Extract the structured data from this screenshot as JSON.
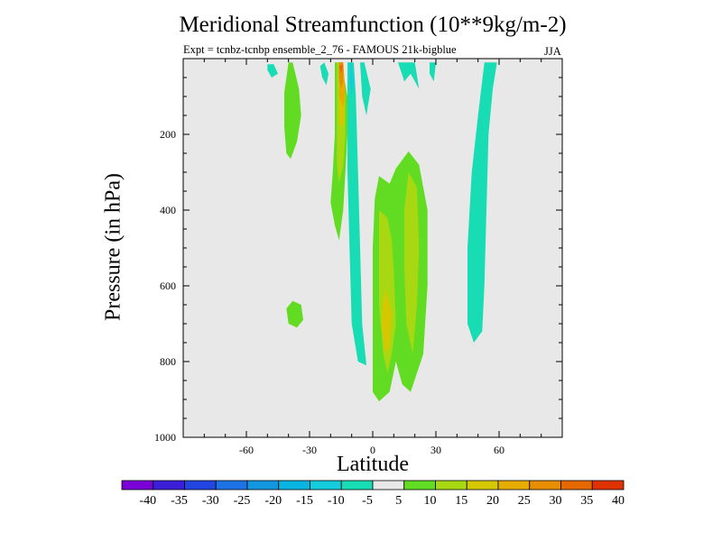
{
  "chart_data": {
    "type": "heatmap",
    "title": "Meridional Streamfunction (10**9kg/m-2)",
    "subtitle": "Expt = tcnbz-tcnbp ensemble_2_76 - FAMOUS 21k-bigblue",
    "season": "JJA",
    "xlabel": "Latitude",
    "ylabel": "Pressure (in hPa)",
    "xlim": [
      -90,
      90
    ],
    "ylim": [
      1000,
      0
    ],
    "x_ticks": [
      -60,
      -30,
      0,
      30,
      60
    ],
    "x_tick_labels": [
      "-60",
      "-30",
      "0",
      "30",
      "60"
    ],
    "y_ticks": [
      200,
      400,
      600,
      800,
      1000
    ],
    "y_tick_labels": [
      "200",
      "400",
      "600",
      "800",
      "1000"
    ],
    "background_color": "#e8e8e8",
    "colorbar": {
      "levels": [
        -40,
        -35,
        -30,
        -25,
        -20,
        -15,
        -10,
        -5,
        5,
        10,
        15,
        20,
        25,
        30,
        35,
        40
      ],
      "level_labels": [
        "-40",
        "-35",
        "-30",
        "-25",
        "-20",
        "-15",
        "-10",
        "-5",
        "5",
        "10",
        "15",
        "20",
        "25",
        "30",
        "35",
        "40"
      ],
      "colors": [
        "#7b00d8",
        "#3b1ed8",
        "#2244e0",
        "#1d72e6",
        "#1396e0",
        "#0ab4e0",
        "#14ccdc",
        "#18dcb4",
        "#e8e8e8",
        "#62dc22",
        "#a8d812",
        "#d6c800",
        "#e6ac00",
        "#e88c00",
        "#e66800",
        "#e03200"
      ]
    },
    "contours": [
      {
        "value": 5,
        "color": "#62dc22",
        "points": [
          [
            -38,
            10
          ],
          [
            -35,
            80
          ],
          [
            -34,
            150
          ],
          [
            -36,
            220
          ],
          [
            -39,
            265
          ],
          [
            -41,
            250
          ],
          [
            -42,
            180
          ],
          [
            -42,
            90
          ],
          [
            -40,
            10
          ]
        ]
      },
      {
        "value": -5,
        "color": "#18dcb4",
        "points": [
          [
            -47,
            15
          ],
          [
            -45,
            40
          ],
          [
            -48,
            50
          ],
          [
            -50,
            30
          ],
          [
            -50,
            15
          ]
        ]
      },
      {
        "value": 5,
        "color": "#62dc22",
        "points": [
          [
            -34,
            650
          ],
          [
            -33,
            690
          ],
          [
            -36,
            710
          ],
          [
            -40,
            700
          ],
          [
            -41,
            660
          ],
          [
            -38,
            640
          ]
        ]
      },
      {
        "value": -5,
        "color": "#18dcb4",
        "points": [
          [
            -23,
            10
          ],
          [
            -21,
            40
          ],
          [
            -22,
            70
          ],
          [
            -24,
            50
          ],
          [
            -25,
            20
          ]
        ]
      },
      {
        "value": 5,
        "color": "#62dc22",
        "points": [
          [
            -15,
            10
          ],
          [
            -12,
            100
          ],
          [
            -12,
            200
          ],
          [
            -13,
            300
          ],
          [
            -14,
            400
          ],
          [
            -16,
            480
          ],
          [
            -18,
            440
          ],
          [
            -20,
            380
          ],
          [
            -19,
            300
          ],
          [
            -18,
            200
          ],
          [
            -18,
            100
          ],
          [
            -18,
            10
          ]
        ]
      },
      {
        "value": 10,
        "color": "#a8d812",
        "points": [
          [
            -15,
            10
          ],
          [
            -13,
            100
          ],
          [
            -13,
            200
          ],
          [
            -14,
            280
          ],
          [
            -16,
            330
          ],
          [
            -17,
            280
          ],
          [
            -17,
            200
          ],
          [
            -17,
            100
          ],
          [
            -17,
            10
          ]
        ]
      },
      {
        "value": 15,
        "color": "#d6c800",
        "points": [
          [
            -14,
            10
          ],
          [
            -13,
            100
          ],
          [
            -14,
            180
          ],
          [
            -16,
            170
          ],
          [
            -16,
            100
          ],
          [
            -16,
            10
          ]
        ]
      },
      {
        "value": 20,
        "color": "#e6ac00",
        "points": [
          [
            -14,
            10
          ],
          [
            -13,
            90
          ],
          [
            -14,
            130
          ],
          [
            -16,
            100
          ],
          [
            -16,
            10
          ]
        ]
      },
      {
        "value": 25,
        "color": "#e88c00",
        "points": [
          [
            -14,
            10
          ],
          [
            -14,
            60
          ],
          [
            -15,
            80
          ],
          [
            -16,
            50
          ],
          [
            -16,
            10
          ]
        ]
      },
      {
        "value": 30,
        "color": "#e66800",
        "points": [
          [
            -14,
            15
          ],
          [
            -15,
            40
          ],
          [
            -16,
            20
          ]
        ]
      },
      {
        "value": -5,
        "color": "#18dcb4",
        "points": [
          [
            -12,
            10
          ],
          [
            -9,
            10
          ],
          [
            -8,
            100
          ],
          [
            -7,
            300
          ],
          [
            -6,
            500
          ],
          [
            -5,
            700
          ],
          [
            -3,
            810
          ],
          [
            -7,
            800
          ],
          [
            -10,
            700
          ],
          [
            -11,
            500
          ],
          [
            -12,
            300
          ],
          [
            -12,
            100
          ]
        ]
      },
      {
        "value": -10,
        "color": "#14ccdc",
        "points": [
          [
            -10,
            10
          ],
          [
            -9,
            60
          ],
          [
            -10,
            100
          ],
          [
            -11,
            60
          ],
          [
            -11,
            10
          ]
        ]
      },
      {
        "value": -5,
        "color": "#18dcb4",
        "points": [
          [
            -4,
            10
          ],
          [
            -1,
            80
          ],
          [
            -3,
            150
          ],
          [
            -5,
            100
          ],
          [
            -6,
            10
          ]
        ]
      },
      {
        "value": -5,
        "color": "#18dcb4",
        "points": [
          [
            12,
            10
          ],
          [
            20,
            10
          ],
          [
            22,
            80
          ],
          [
            18,
            40
          ],
          [
            15,
            60
          ]
        ]
      },
      {
        "value": -5,
        "color": "#18dcb4",
        "points": [
          [
            27,
            10
          ],
          [
            30,
            10
          ],
          [
            29,
            60
          ],
          [
            27,
            40
          ]
        ]
      },
      {
        "value": -5,
        "color": "#18dcb4",
        "points": [
          [
            53,
            10
          ],
          [
            59,
            10
          ],
          [
            57,
            80
          ],
          [
            55,
            200
          ],
          [
            54,
            400
          ],
          [
            53,
            600
          ],
          [
            52,
            720
          ],
          [
            48,
            750
          ],
          [
            45,
            700
          ],
          [
            45,
            500
          ],
          [
            47,
            300
          ],
          [
            50,
            150
          ]
        ]
      },
      {
        "value": 5,
        "color": "#62dc22",
        "points": [
          [
            1,
            370
          ],
          [
            3,
            310
          ],
          [
            8,
            330
          ],
          [
            11,
            290
          ],
          [
            17,
            245
          ],
          [
            22,
            280
          ],
          [
            26,
            400
          ],
          [
            26,
            600
          ],
          [
            24,
            780
          ],
          [
            18,
            880
          ],
          [
            14,
            860
          ],
          [
            11,
            800
          ],
          [
            8,
            880
          ],
          [
            3,
            905
          ],
          [
            0,
            880
          ],
          [
            0,
            700
          ],
          [
            0,
            500
          ]
        ]
      },
      {
        "value": 10,
        "color": "#a8d812",
        "points": [
          [
            3,
            400
          ],
          [
            7,
            420
          ],
          [
            9,
            480
          ],
          [
            10,
            560
          ],
          [
            11,
            700
          ],
          [
            9,
            780
          ],
          [
            7,
            830
          ],
          [
            5,
            780
          ],
          [
            3,
            650
          ],
          [
            3,
            500
          ]
        ]
      },
      {
        "value": 10,
        "color": "#a8d812",
        "points": [
          [
            17,
            300
          ],
          [
            21,
            340
          ],
          [
            22,
            500
          ],
          [
            21,
            650
          ],
          [
            19,
            780
          ],
          [
            16,
            700
          ],
          [
            15,
            550
          ],
          [
            15,
            400
          ]
        ]
      },
      {
        "value": 15,
        "color": "#d6c800",
        "points": [
          [
            6,
            610
          ],
          [
            9,
            670
          ],
          [
            8,
            760
          ],
          [
            6,
            780
          ],
          [
            4,
            700
          ],
          [
            5,
            640
          ]
        ]
      }
    ]
  }
}
